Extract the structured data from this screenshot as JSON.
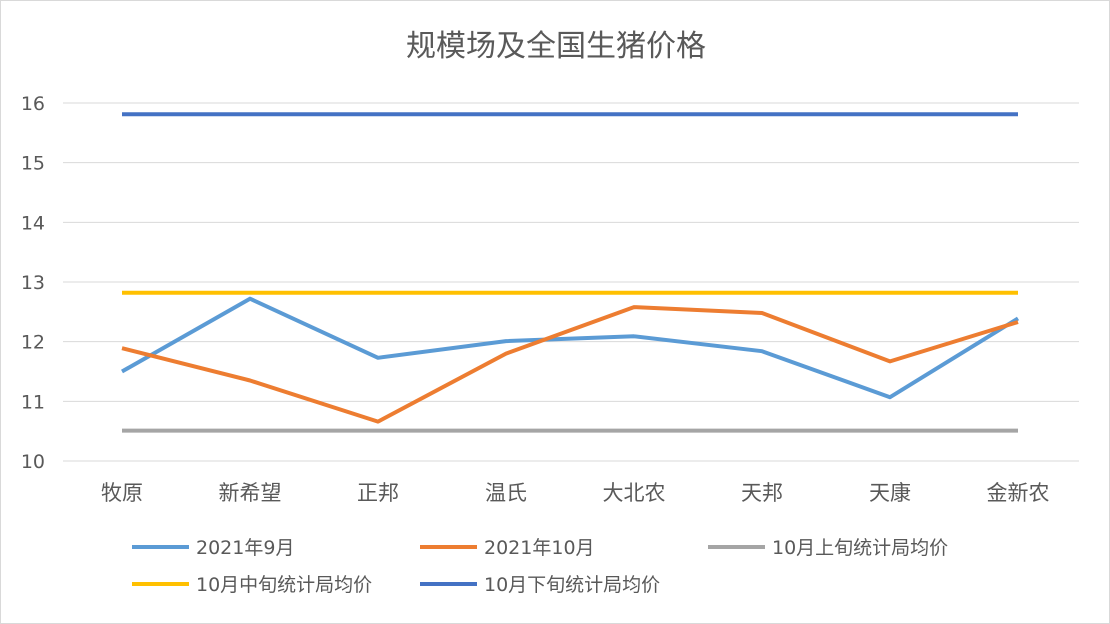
{
  "chart_data": {
    "type": "line",
    "title": "规模场及全国生猪价格",
    "xlabel": "",
    "ylabel": "",
    "ylim": [
      10,
      16
    ],
    "yticks": [
      10,
      11,
      12,
      13,
      14,
      15,
      16
    ],
    "grid": true,
    "legend_position": "bottom",
    "categories": [
      "牧原",
      "新希望",
      "正邦",
      "温氏",
      "大北农",
      "天邦",
      "天康",
      "金新农"
    ],
    "series": [
      {
        "name": "2021年9月",
        "color": "#5b9bd5",
        "values": [
          11.5,
          12.72,
          11.73,
          12.01,
          12.09,
          11.84,
          11.07,
          12.39
        ]
      },
      {
        "name": "2021年10月",
        "color": "#ed7d31",
        "values": [
          11.89,
          11.35,
          10.66,
          11.8,
          12.58,
          12.48,
          11.67,
          12.33
        ]
      },
      {
        "name": "10月上旬统计局均价",
        "color": "#a5a5a5",
        "values": [
          10.51,
          10.51,
          10.51,
          10.51,
          10.51,
          10.51,
          10.51,
          10.51
        ]
      },
      {
        "name": "10月中旬统计局均价",
        "color": "#ffc000",
        "values": [
          12.82,
          12.82,
          12.82,
          12.82,
          12.82,
          12.82,
          12.82,
          12.82
        ]
      },
      {
        "name": "10月下旬统计局均价",
        "color": "#4472c4",
        "values": [
          15.81,
          15.81,
          15.81,
          15.81,
          15.81,
          15.81,
          15.81,
          15.81
        ]
      }
    ]
  }
}
